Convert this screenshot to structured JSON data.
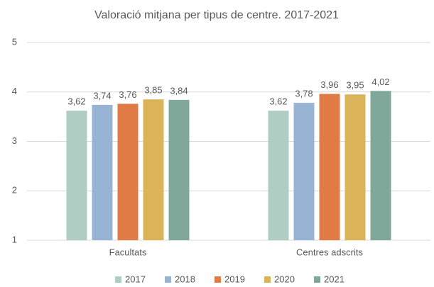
{
  "chart_data": {
    "type": "bar",
    "title": "Valoració mitjana per tipus de centre. 2017-2021",
    "categories": [
      "Facultats",
      "Centres adscrits"
    ],
    "series": [
      {
        "name": "2017",
        "color": "#b0cdc4",
        "values": [
          3.62,
          3.62
        ],
        "value_labels": [
          "3,62",
          "3,62"
        ]
      },
      {
        "name": "2018",
        "color": "#98b4d4",
        "values": [
          3.74,
          3.78
        ],
        "value_labels": [
          "3,74",
          "3,78"
        ]
      },
      {
        "name": "2019",
        "color": "#e07b45",
        "values": [
          3.76,
          3.96
        ],
        "value_labels": [
          "3,76",
          "3,96"
        ]
      },
      {
        "name": "2020",
        "color": "#dbb45a",
        "values": [
          3.85,
          3.95
        ],
        "value_labels": [
          "3,85",
          "3,95"
        ]
      },
      {
        "name": "2021",
        "color": "#7fa89a",
        "values": [
          3.84,
          4.02
        ],
        "value_labels": [
          "3,84",
          "4,02"
        ]
      }
    ],
    "ylim": [
      1,
      5
    ],
    "yticks": [
      1,
      2,
      3,
      4,
      5
    ],
    "grid": true,
    "legend": "bottom"
  }
}
